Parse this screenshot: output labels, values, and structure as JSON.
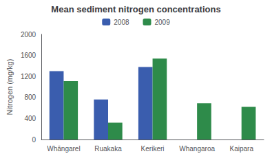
{
  "chart_data": {
    "type": "bar",
    "title": "Mean sediment nitrogen concentrations",
    "ylabel": "Nitrogen (mg/kg)",
    "categories": [
      "Whāngarel",
      "Ruakaka",
      "Kerikeri",
      "Whangaroa",
      "Kaipara"
    ],
    "series": [
      {
        "name": "2008",
        "color": "#3A5DAE",
        "values": [
          1300,
          760,
          1380,
          null,
          null
        ]
      },
      {
        "name": "2009",
        "color": "#2E8B4A",
        "values": [
          1110,
          320,
          1540,
          690,
          620
        ]
      }
    ],
    "ylim": [
      0,
      2000
    ],
    "yticks": [
      0,
      400,
      800,
      1200,
      1600,
      2000
    ],
    "grid": false,
    "legend": "top"
  }
}
